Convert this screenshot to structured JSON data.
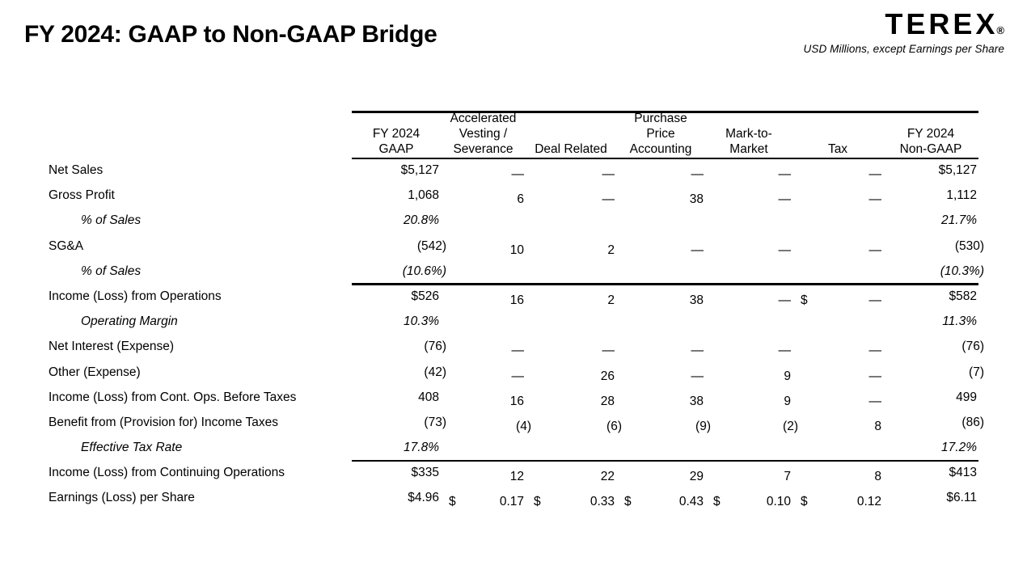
{
  "slide": {
    "title": "FY 2024: GAAP to Non-GAAP Bridge",
    "logo_text": "TEREX",
    "logo_mark": "®",
    "subtitle": "USD Millions, except Earnings per Share",
    "colors": {
      "text": "#000000",
      "background": "#ffffff",
      "rule": "#000000"
    }
  },
  "table": {
    "columns": [
      "FY 2024\nGAAP",
      "Accelerated\nVesting /\nSeverance",
      "Deal Related",
      "Purchase\nPrice\nAccounting",
      "Mark-to-\nMarket",
      "Tax",
      "FY 2024\nNon-GAAP"
    ],
    "rows": [
      {
        "label": "Net Sales",
        "cells": [
          "$5,127",
          "—",
          "—",
          "—",
          "—",
          "—",
          "$5,127"
        ]
      },
      {
        "label": "Gross Profit",
        "cells": [
          "1,068",
          "6",
          "—",
          "38",
          "—",
          "—",
          "1,112"
        ]
      },
      {
        "label": "% of Sales",
        "indent": true,
        "italic": true,
        "cells": [
          "20.8%",
          "",
          "",
          "",
          "",
          "",
          "21.7%"
        ]
      },
      {
        "label": "SG&A",
        "cells": [
          "(542)",
          "10",
          "2",
          "—",
          "—",
          "—",
          "(530)"
        ]
      },
      {
        "label": "% of Sales",
        "indent": true,
        "italic": true,
        "rule_after": true,
        "cells": [
          "(10.6%)",
          "",
          "",
          "",
          "",
          "",
          "(10.3%)"
        ]
      },
      {
        "label": "Income (Loss) from Operations",
        "cells": [
          "$526",
          "16",
          "2",
          "38",
          "—",
          {
            "cur": "$",
            "val": "—"
          },
          "$582"
        ]
      },
      {
        "label": "Operating Margin",
        "indent": true,
        "italic": true,
        "cells": [
          "10.3%",
          "",
          "",
          "",
          "",
          "",
          "11.3%"
        ]
      },
      {
        "label": "Net Interest (Expense)",
        "cells": [
          "(76)",
          "—",
          "—",
          "—",
          "—",
          "—",
          "(76)"
        ]
      },
      {
        "label": "Other (Expense)",
        "cells": [
          "(42)",
          "—",
          "26",
          "—",
          "9",
          "—",
          "(7)"
        ]
      },
      {
        "label": "Income (Loss) from Cont. Ops. Before Taxes",
        "cells": [
          "408",
          "16",
          "28",
          "38",
          "9",
          "—",
          "499"
        ]
      },
      {
        "label": "Benefit from (Provision for) Income Taxes",
        "cells": [
          "(73)",
          "(4)",
          "(6)",
          "(9)",
          "(2)",
          "8",
          "(86)"
        ]
      },
      {
        "label": "Effective Tax Rate",
        "indent": true,
        "italic": true,
        "rule_after": true,
        "cells": [
          "17.8%",
          "",
          "",
          "",
          "",
          "",
          "17.2%"
        ]
      },
      {
        "label": "Income (Loss) from Continuing Operations",
        "cells": [
          "$335",
          "12",
          "22",
          "29",
          "7",
          "8",
          "$413"
        ]
      },
      {
        "label": "Earnings (Loss) per Share",
        "cells": [
          "$4.96",
          {
            "cur": "$",
            "val": "0.17"
          },
          {
            "cur": "$",
            "val": "0.33"
          },
          {
            "cur": "$",
            "val": "0.43"
          },
          {
            "cur": "$",
            "val": "0.10"
          },
          {
            "cur": "$",
            "val": "0.12"
          },
          "$6.11"
        ]
      }
    ]
  }
}
